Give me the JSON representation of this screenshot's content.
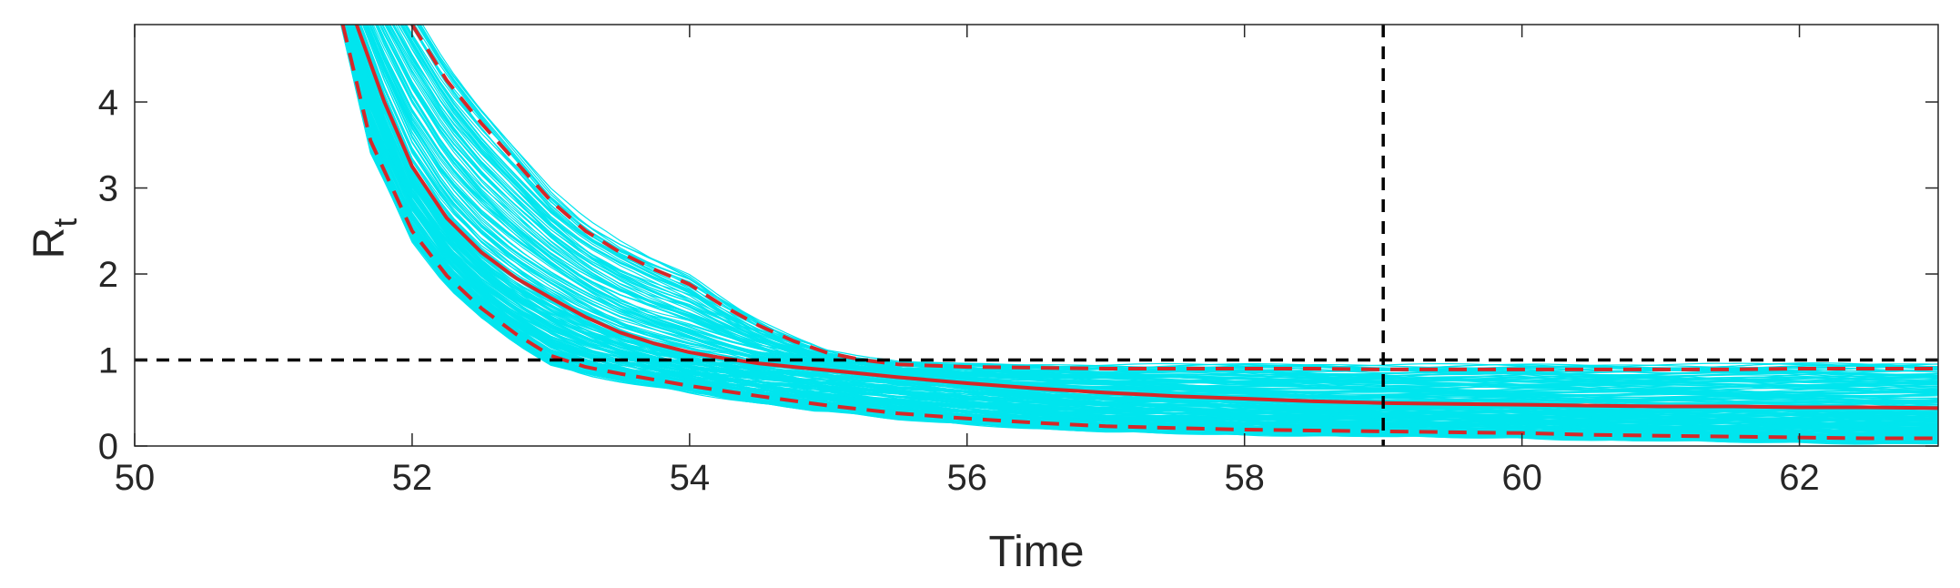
{
  "chart_data": {
    "type": "line",
    "title": "",
    "xlabel": "Time",
    "ylabel": "R",
    "ylabel_subscript": "t",
    "xlim": [
      50,
      63
    ],
    "ylim": [
      0,
      4.9
    ],
    "xticks": [
      50,
      52,
      54,
      56,
      58,
      60,
      62
    ],
    "yticks": [
      0,
      1,
      2,
      3,
      4
    ],
    "grid": false,
    "colors": {
      "ensemble": "#00e5ee",
      "median": "#d62728",
      "bounds": "#d62728",
      "reference": "#000000",
      "axes": "#262626"
    },
    "reference_lines": {
      "horizontal_y": 1,
      "vertical_x": 59
    },
    "series": [
      {
        "style": "solid",
        "x": [
          51.6,
          51.8,
          52.0,
          52.25,
          52.5,
          52.75,
          53.0,
          53.25,
          53.5,
          53.75,
          54.0,
          54.25,
          54.5,
          54.75,
          55.0,
          55.5,
          56.0,
          56.5,
          57.0,
          57.5,
          58.0,
          58.5,
          59.0,
          59.5,
          60.0,
          60.5,
          61.0,
          61.5,
          62.0,
          62.5,
          63.0
        ],
        "y": [
          4.9,
          4.0,
          3.25,
          2.65,
          2.25,
          1.95,
          1.72,
          1.5,
          1.32,
          1.19,
          1.09,
          1.02,
          0.96,
          0.92,
          0.88,
          0.8,
          0.73,
          0.67,
          0.62,
          0.58,
          0.55,
          0.52,
          0.5,
          0.49,
          0.48,
          0.47,
          0.46,
          0.46,
          0.45,
          0.45,
          0.44
        ]
      },
      {
        "style": "dashed",
        "x": [
          51.5,
          51.7,
          52.0,
          52.25,
          52.5,
          52.75,
          53.0,
          53.25,
          53.5,
          53.75,
          54.0,
          54.5,
          55.0,
          55.5,
          56.0,
          56.5,
          57.0,
          57.5,
          58.0,
          58.5,
          59.0,
          59.5,
          60.0,
          60.5,
          61.0,
          61.5,
          62.0,
          62.5,
          63.0
        ],
        "y": [
          4.9,
          3.55,
          2.5,
          1.98,
          1.6,
          1.3,
          1.05,
          0.92,
          0.84,
          0.77,
          0.7,
          0.58,
          0.47,
          0.38,
          0.32,
          0.27,
          0.23,
          0.21,
          0.19,
          0.18,
          0.17,
          0.16,
          0.15,
          0.13,
          0.12,
          0.11,
          0.1,
          0.09,
          0.09
        ]
      },
      {
        "style": "dashed",
        "x": [
          52.0,
          52.25,
          52.5,
          52.75,
          53.0,
          53.25,
          53.5,
          53.75,
          54.0,
          54.25,
          54.5,
          54.75,
          55.0,
          55.25,
          55.5,
          56.0,
          56.5,
          57.0,
          57.5,
          58.0,
          58.5,
          59.0,
          59.5,
          60.0,
          60.5,
          61.0,
          61.5,
          62.0,
          62.5,
          63.0
        ],
        "y": [
          4.9,
          4.25,
          3.75,
          3.3,
          2.85,
          2.5,
          2.25,
          2.05,
          1.88,
          1.62,
          1.4,
          1.22,
          1.08,
          1.0,
          0.95,
          0.92,
          0.91,
          0.9,
          0.9,
          0.9,
          0.9,
          0.89,
          0.89,
          0.89,
          0.89,
          0.89,
          0.89,
          0.9,
          0.9,
          0.9
        ]
      }
    ],
    "ensemble_count": 250
  }
}
